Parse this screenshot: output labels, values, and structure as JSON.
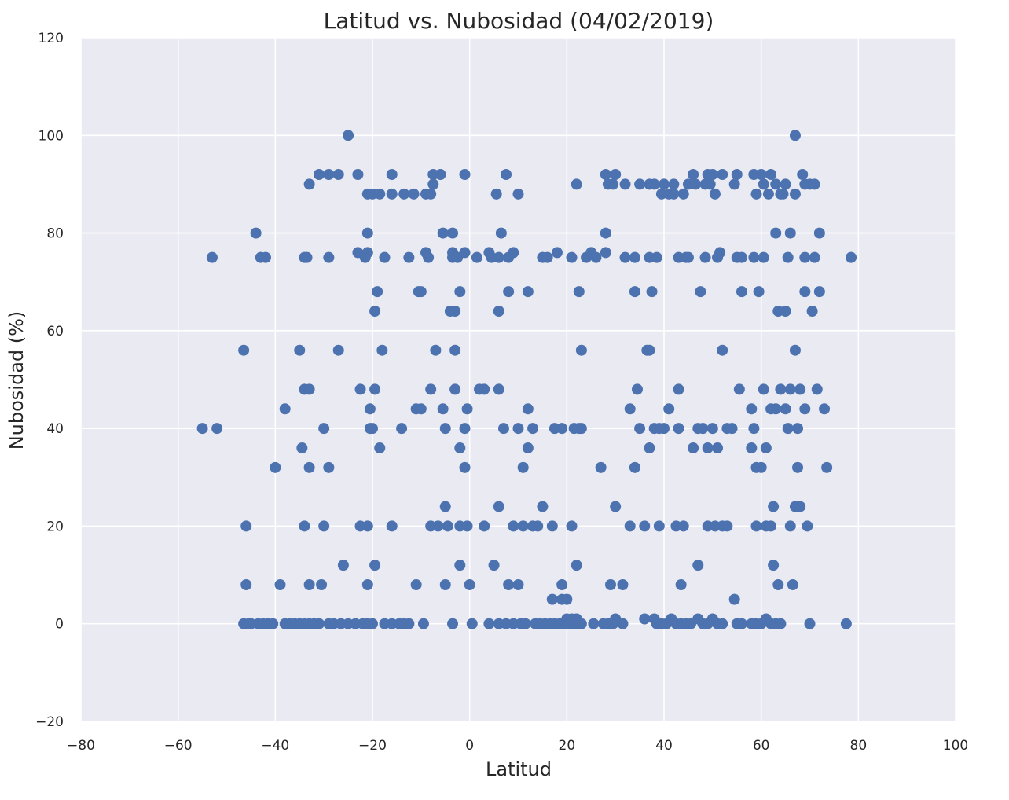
{
  "chart_data": {
    "type": "scatter",
    "title": "Latitud vs. Nubosidad (04/02/2019)",
    "xlabel": "Latitud",
    "ylabel": "Nubosidad (%)",
    "xlim": [
      -80,
      100
    ],
    "ylim": [
      -20,
      120
    ],
    "xticks": [
      "−80",
      "−60",
      "−40",
      "−20",
      "0",
      "20",
      "40",
      "60",
      "80",
      "100"
    ],
    "yticks": [
      "−20",
      "0",
      "20",
      "40",
      "60",
      "80",
      "100",
      "120"
    ],
    "grid": true,
    "colors": {
      "point": "#4c72b0",
      "background": "#eaeaf2",
      "grid": "#ffffff"
    },
    "points": [
      [
        -55,
        40
      ],
      [
        -52,
        40
      ],
      [
        -53,
        75
      ],
      [
        -46.5,
        56
      ],
      [
        -46,
        20
      ],
      [
        -46,
        8
      ],
      [
        -44,
        80
      ],
      [
        -43,
        75
      ],
      [
        -42,
        75
      ],
      [
        -40,
        32
      ],
      [
        -39,
        8
      ],
      [
        -38,
        44
      ],
      [
        -35,
        56
      ],
      [
        -34.5,
        36
      ],
      [
        -34,
        48
      ],
      [
        -34,
        75
      ],
      [
        -33.5,
        75
      ],
      [
        -33,
        90
      ],
      [
        -33,
        48
      ],
      [
        -33,
        32
      ],
      [
        -33,
        8
      ],
      [
        -34,
        20
      ],
      [
        -31,
        92
      ],
      [
        -30,
        40
      ],
      [
        -30,
        20
      ],
      [
        -30.5,
        8
      ],
      [
        -29,
        92
      ],
      [
        -29,
        75
      ],
      [
        -29,
        32
      ],
      [
        -27,
        92
      ],
      [
        -27,
        56
      ],
      [
        -26,
        12
      ],
      [
        -25,
        100
      ],
      [
        -23,
        92
      ],
      [
        -23,
        76
      ],
      [
        -22.5,
        48
      ],
      [
        -22.5,
        20
      ],
      [
        -21.5,
        75
      ],
      [
        -21,
        88
      ],
      [
        -21,
        80
      ],
      [
        -21,
        76
      ],
      [
        -21,
        20
      ],
      [
        -21,
        8
      ],
      [
        -20.5,
        40
      ],
      [
        -20.5,
        44
      ],
      [
        -20,
        40
      ],
      [
        -20,
        88
      ],
      [
        -19.5,
        64
      ],
      [
        -19.5,
        48
      ],
      [
        -19.5,
        12
      ],
      [
        -19,
        68
      ],
      [
        -18.5,
        88
      ],
      [
        -18.5,
        36
      ],
      [
        -18,
        56
      ],
      [
        -17.5,
        75
      ],
      [
        -16,
        92
      ],
      [
        -16,
        88
      ],
      [
        -16,
        20
      ],
      [
        -14,
        40
      ],
      [
        -13.5,
        88
      ],
      [
        -12.5,
        75
      ],
      [
        -11.5,
        88
      ],
      [
        -11,
        44
      ],
      [
        -11,
        8
      ],
      [
        -10.5,
        68
      ],
      [
        -10,
        44
      ],
      [
        -10,
        68
      ],
      [
        -9,
        88
      ],
      [
        -9,
        76
      ],
      [
        -8.5,
        75
      ],
      [
        -8,
        88
      ],
      [
        -8,
        20
      ],
      [
        -8,
        48
      ],
      [
        -7.5,
        92
      ],
      [
        -7.5,
        90
      ],
      [
        -7,
        56
      ],
      [
        -6,
        92
      ],
      [
        -6.5,
        20
      ],
      [
        -5.5,
        80
      ],
      [
        -5.5,
        44
      ],
      [
        -5,
        40
      ],
      [
        -5,
        24
      ],
      [
        -5,
        8
      ],
      [
        -4.5,
        20
      ],
      [
        -4,
        64
      ],
      [
        -3.5,
        80
      ],
      [
        -3.5,
        76
      ],
      [
        -3.5,
        75
      ],
      [
        -3,
        56
      ],
      [
        -3,
        48
      ],
      [
        -3,
        64
      ],
      [
        -2.5,
        75
      ],
      [
        -2,
        20
      ],
      [
        -2,
        12
      ],
      [
        -2,
        36
      ],
      [
        -2,
        68
      ],
      [
        -1,
        92
      ],
      [
        -1,
        76
      ],
      [
        -1,
        40
      ],
      [
        -1,
        32
      ],
      [
        -0.5,
        44
      ],
      [
        -0.5,
        20
      ],
      [
        0,
        8
      ],
      [
        1.5,
        75
      ],
      [
        2,
        48
      ],
      [
        3,
        48
      ],
      [
        3,
        20
      ],
      [
        4,
        76
      ],
      [
        4.5,
        75
      ],
      [
        5,
        12
      ],
      [
        5.5,
        88
      ],
      [
        6,
        24
      ],
      [
        6,
        48
      ],
      [
        6,
        75
      ],
      [
        6,
        64
      ],
      [
        6.5,
        80
      ],
      [
        7,
        40
      ],
      [
        7.5,
        92
      ],
      [
        8,
        75
      ],
      [
        8,
        68
      ],
      [
        8,
        8
      ],
      [
        9,
        20
      ],
      [
        9,
        76
      ],
      [
        10,
        88
      ],
      [
        10,
        8
      ],
      [
        10,
        40
      ],
      [
        11,
        20
      ],
      [
        11,
        32
      ],
      [
        12,
        44
      ],
      [
        12,
        68
      ],
      [
        12,
        36
      ],
      [
        13,
        40
      ],
      [
        13,
        20
      ],
      [
        14,
        20
      ],
      [
        15,
        75
      ],
      [
        15,
        24
      ],
      [
        16,
        75
      ],
      [
        17,
        20
      ],
      [
        17,
        5
      ],
      [
        17.5,
        40
      ],
      [
        18,
        76
      ],
      [
        19,
        40
      ],
      [
        19,
        8
      ],
      [
        19,
        5
      ],
      [
        20,
        5
      ],
      [
        21,
        75
      ],
      [
        21,
        20
      ],
      [
        21.5,
        40
      ],
      [
        22,
        12
      ],
      [
        22,
        90
      ],
      [
        22.5,
        68
      ],
      [
        22.5,
        40
      ],
      [
        23,
        56
      ],
      [
        23,
        40
      ],
      [
        24,
        75
      ],
      [
        25,
        76
      ],
      [
        26,
        75
      ],
      [
        27,
        32
      ],
      [
        28,
        80
      ],
      [
        28,
        76
      ],
      [
        28,
        92
      ],
      [
        28.5,
        90
      ],
      [
        29,
        8
      ],
      [
        29.5,
        90
      ],
      [
        30,
        92
      ],
      [
        30,
        24
      ],
      [
        31.5,
        8
      ],
      [
        32,
        90
      ],
      [
        32,
        75
      ],
      [
        33,
        44
      ],
      [
        33,
        20
      ],
      [
        34,
        75
      ],
      [
        34,
        68
      ],
      [
        34,
        32
      ],
      [
        34.5,
        48
      ],
      [
        35,
        40
      ],
      [
        35,
        90
      ],
      [
        36,
        20
      ],
      [
        36.5,
        56
      ],
      [
        37,
        90
      ],
      [
        37,
        36
      ],
      [
        37,
        56
      ],
      [
        37,
        75
      ],
      [
        37.5,
        68
      ],
      [
        38,
        90
      ],
      [
        38,
        40
      ],
      [
        38.5,
        75
      ],
      [
        39,
        40
      ],
      [
        39,
        20
      ],
      [
        39.5,
        88
      ],
      [
        40,
        40
      ],
      [
        40,
        90
      ],
      [
        41,
        88
      ],
      [
        41,
        44
      ],
      [
        42,
        90
      ],
      [
        42,
        88
      ],
      [
        42.5,
        20
      ],
      [
        43,
        75
      ],
      [
        43,
        40
      ],
      [
        43,
        48
      ],
      [
        43.5,
        8
      ],
      [
        44,
        88
      ],
      [
        44,
        20
      ],
      [
        44.5,
        75
      ],
      [
        45,
        90
      ],
      [
        45,
        75
      ],
      [
        46,
        92
      ],
      [
        46,
        36
      ],
      [
        46.5,
        90
      ],
      [
        47,
        40
      ],
      [
        47,
        12
      ],
      [
        47.5,
        68
      ],
      [
        48,
        40
      ],
      [
        48.5,
        90
      ],
      [
        48.5,
        75
      ],
      [
        49,
        92
      ],
      [
        49,
        36
      ],
      [
        49,
        20
      ],
      [
        49.5,
        90
      ],
      [
        50,
        40
      ],
      [
        50,
        92
      ],
      [
        50.5,
        88
      ],
      [
        50.5,
        20
      ],
      [
        51,
        36
      ],
      [
        51,
        75
      ],
      [
        51.5,
        76
      ],
      [
        52,
        56
      ],
      [
        52,
        92
      ],
      [
        52,
        20
      ],
      [
        53,
        40
      ],
      [
        53,
        20
      ],
      [
        54,
        40
      ],
      [
        54.5,
        90
      ],
      [
        54.5,
        5
      ],
      [
        55,
        75
      ],
      [
        55,
        92
      ],
      [
        55.5,
        48
      ],
      [
        56,
        75
      ],
      [
        56,
        68
      ],
      [
        58,
        44
      ],
      [
        58,
        36
      ],
      [
        58.5,
        92
      ],
      [
        58.5,
        75
      ],
      [
        58.5,
        40
      ],
      [
        59,
        88
      ],
      [
        59,
        20
      ],
      [
        59,
        32
      ],
      [
        59.5,
        68
      ],
      [
        60,
        92
      ],
      [
        60,
        32
      ],
      [
        60.5,
        90
      ],
      [
        60.5,
        75
      ],
      [
        60.5,
        48
      ],
      [
        61,
        36
      ],
      [
        61,
        20
      ],
      [
        61.5,
        88
      ],
      [
        62,
        92
      ],
      [
        62,
        44
      ],
      [
        62,
        20
      ],
      [
        62.5,
        12
      ],
      [
        62.5,
        24
      ],
      [
        63,
        90
      ],
      [
        63,
        80
      ],
      [
        63,
        44
      ],
      [
        63.5,
        64
      ],
      [
        63.5,
        8
      ],
      [
        64,
        88
      ],
      [
        64,
        48
      ],
      [
        64.5,
        88
      ],
      [
        65,
        44
      ],
      [
        65,
        64
      ],
      [
        65,
        90
      ],
      [
        65.5,
        40
      ],
      [
        65.5,
        75
      ],
      [
        66,
        80
      ],
      [
        66,
        20
      ],
      [
        66,
        48
      ],
      [
        66.5,
        8
      ],
      [
        67,
        100
      ],
      [
        67,
        56
      ],
      [
        67,
        24
      ],
      [
        67,
        88
      ],
      [
        67.5,
        32
      ],
      [
        67.5,
        40
      ],
      [
        68,
        24
      ],
      [
        68,
        48
      ],
      [
        68.5,
        92
      ],
      [
        69,
        90
      ],
      [
        69,
        75
      ],
      [
        69,
        68
      ],
      [
        69,
        44
      ],
      [
        69.5,
        20
      ],
      [
        70,
        90
      ],
      [
        70,
        0
      ],
      [
        70.5,
        64
      ],
      [
        71,
        75
      ],
      [
        71,
        90
      ],
      [
        71.5,
        48
      ],
      [
        72,
        80
      ],
      [
        72,
        68
      ],
      [
        73,
        44
      ],
      [
        73.5,
        32
      ],
      [
        77.5,
        0
      ],
      [
        78.5,
        75
      ],
      [
        -46.5,
        0
      ],
      [
        -45.5,
        0
      ],
      [
        -45,
        0
      ],
      [
        -43.5,
        0
      ],
      [
        -42.5,
        0
      ],
      [
        -41.5,
        0
      ],
      [
        -40.5,
        0
      ],
      [
        -38,
        0
      ],
      [
        -37,
        0
      ],
      [
        -36,
        0
      ],
      [
        -35,
        0
      ],
      [
        -34,
        0
      ],
      [
        -33,
        0
      ],
      [
        -32,
        0
      ],
      [
        -31,
        0
      ],
      [
        -29,
        0
      ],
      [
        -28,
        0
      ],
      [
        -26.5,
        0
      ],
      [
        -25,
        0
      ],
      [
        -23.5,
        0
      ],
      [
        -22,
        0
      ],
      [
        -21,
        0
      ],
      [
        -20,
        0
      ],
      [
        -17.5,
        0
      ],
      [
        -16,
        0
      ],
      [
        -14.5,
        0
      ],
      [
        -13.5,
        0
      ],
      [
        -12.5,
        0
      ],
      [
        -9.5,
        0
      ],
      [
        -3.5,
        0
      ],
      [
        0.5,
        0
      ],
      [
        4,
        0
      ],
      [
        6,
        0
      ],
      [
        7.5,
        0
      ],
      [
        9,
        0
      ],
      [
        10.5,
        0
      ],
      [
        11.5,
        0
      ],
      [
        13.5,
        0
      ],
      [
        14.5,
        0
      ],
      [
        15.5,
        0
      ],
      [
        16.5,
        0
      ],
      [
        17.5,
        0
      ],
      [
        18.5,
        0
      ],
      [
        19.5,
        0
      ],
      [
        20.5,
        0
      ],
      [
        21.5,
        0
      ],
      [
        22.5,
        0
      ],
      [
        23,
        0
      ],
      [
        25.5,
        0
      ],
      [
        27.5,
        0
      ],
      [
        28.5,
        0
      ],
      [
        29.5,
        0
      ],
      [
        30,
        1
      ],
      [
        31.5,
        0
      ],
      [
        36,
        1
      ],
      [
        38,
        1
      ],
      [
        38.5,
        0
      ],
      [
        39.5,
        0
      ],
      [
        40.5,
        0
      ],
      [
        41.5,
        1
      ],
      [
        42.5,
        0
      ],
      [
        43.5,
        0
      ],
      [
        44.5,
        0
      ],
      [
        45.5,
        0
      ],
      [
        47,
        1
      ],
      [
        48,
        0
      ],
      [
        49,
        0
      ],
      [
        50,
        1
      ],
      [
        51,
        0
      ],
      [
        52,
        0
      ],
      [
        55,
        0
      ],
      [
        56,
        0
      ],
      [
        58,
        0
      ],
      [
        59,
        0
      ],
      [
        60,
        0
      ],
      [
        61,
        1
      ],
      [
        62,
        0
      ],
      [
        63,
        0
      ],
      [
        64,
        0
      ],
      [
        20,
        1
      ],
      [
        21,
        1
      ],
      [
        22,
        1
      ]
    ]
  }
}
